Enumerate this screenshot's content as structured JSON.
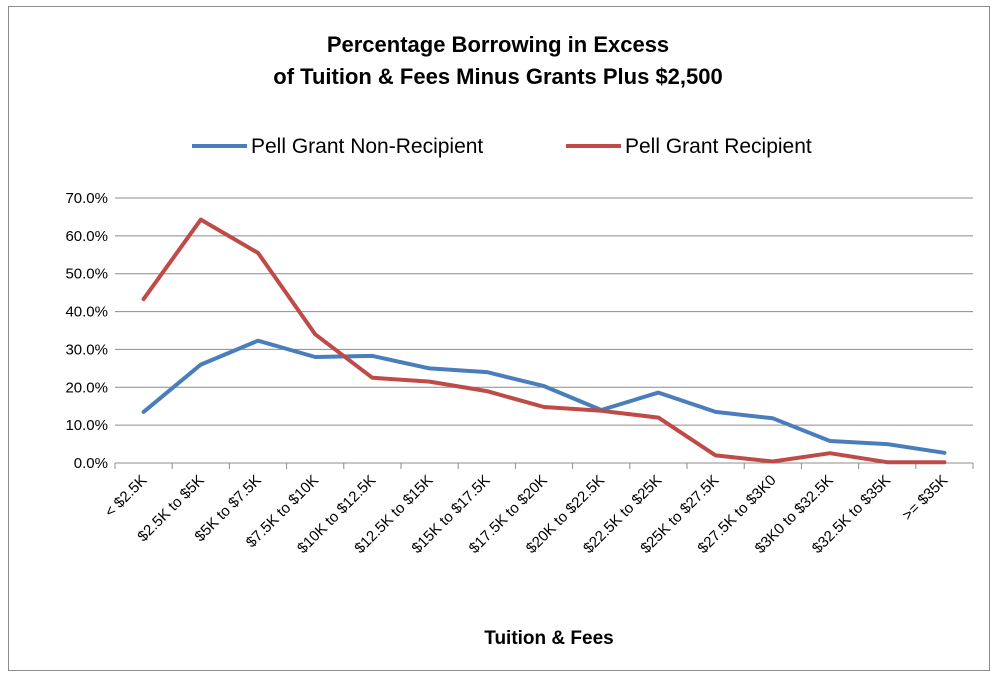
{
  "chart_data": {
    "type": "line",
    "title": [
      "Percentage Borrowing in Excess",
      "of Tuition & Fees Minus Grants Plus $2,500"
    ],
    "xlabel": "Tuition & Fees",
    "ylabel": "",
    "ylim": [
      0,
      70
    ],
    "y_ticks": [
      "0.0%",
      "10.0%",
      "20.0%",
      "30.0%",
      "40.0%",
      "50.0%",
      "60.0%",
      "70.0%"
    ],
    "y_tick_values": [
      0,
      10,
      20,
      30,
      40,
      50,
      60,
      70
    ],
    "grid": true,
    "legend_position": "top",
    "categories": [
      "< $2.5K",
      "$2.5K to $5K",
      "$5K to $7.5K",
      "$7.5K to $10K",
      "$10K to $12.5K",
      "$12.5K to $15K",
      "$15K to $17.5K",
      "$17.5K to $20K",
      "$20K to $22.5K",
      "$22.5K to $25K",
      "$25K to $27.5K",
      "$27.5K to $3K0",
      "$3K0 to $32.5K",
      "$32.5K to $35K",
      ">= $35K"
    ],
    "series": [
      {
        "name": "Pell Grant Non-Recipient",
        "color": "#4a7ebb",
        "values": [
          13.5,
          26.0,
          32.3,
          28.0,
          28.3,
          25.0,
          24.0,
          20.3,
          14.0,
          18.6,
          13.5,
          11.8,
          5.8,
          5.0,
          2.7
        ]
      },
      {
        "name": "Pell Grant Recipient",
        "color": "#be4b48",
        "values": [
          43.3,
          64.3,
          55.5,
          34.0,
          22.5,
          21.5,
          19.0,
          14.8,
          13.8,
          12.0,
          2.0,
          0.4,
          2.6,
          0.2,
          0.2
        ]
      }
    ]
  }
}
